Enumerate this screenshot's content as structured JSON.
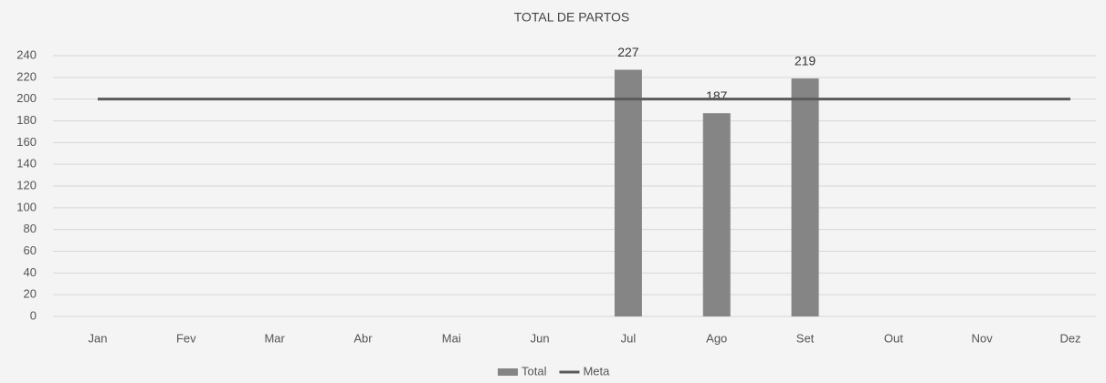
{
  "chart_data": {
    "type": "bar",
    "title": "TOTAL DE PARTOS",
    "categories": [
      "Jan",
      "Fev",
      "Mar",
      "Abr",
      "Mai",
      "Jun",
      "Jul",
      "Ago",
      "Set",
      "Out",
      "Nov",
      "Dez"
    ],
    "series": [
      {
        "name": "Total",
        "type": "bar",
        "color": "#858585",
        "data_labels": true,
        "values": [
          null,
          null,
          null,
          null,
          null,
          null,
          227,
          187,
          219,
          null,
          null,
          null
        ]
      },
      {
        "name": "Meta",
        "type": "line",
        "color": "#5a5a5a",
        "data_labels": false,
        "values": [
          200,
          200,
          200,
          200,
          200,
          200,
          200,
          200,
          200,
          200,
          200,
          200
        ]
      }
    ],
    "ylim": [
      0,
      240
    ],
    "yticks": [
      0,
      20,
      40,
      60,
      80,
      100,
      120,
      140,
      160,
      180,
      200,
      220,
      240
    ],
    "grid": true,
    "legend": "bottom"
  }
}
